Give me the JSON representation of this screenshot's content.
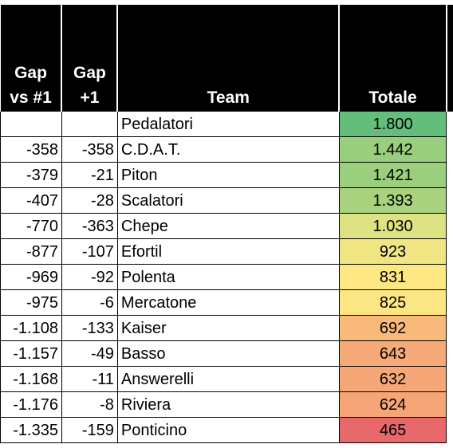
{
  "headers": {
    "gap_first": "Gap\nvs #1",
    "gap_prev": "Gap\n+1",
    "team": "Team",
    "total": "Totale"
  },
  "rows": [
    {
      "gap_first": "",
      "gap_prev": "",
      "team": "Pedalatori",
      "total": "1.800",
      "color": "#63be7b"
    },
    {
      "gap_first": "-358",
      "gap_prev": "-358",
      "team": "C.D.A.T.",
      "total": "1.442",
      "color": "#99ce7e"
    },
    {
      "gap_first": "-379",
      "gap_prev": "-21",
      "team": "Piton",
      "total": "1.421",
      "color": "#9bcf7e"
    },
    {
      "gap_first": "-407",
      "gap_prev": "-28",
      "team": "Scalatori",
      "total": "1.393",
      "color": "#a9d27f"
    },
    {
      "gap_first": "-770",
      "gap_prev": "-363",
      "team": "Chepe",
      "total": "1.030",
      "color": "#dde283"
    },
    {
      "gap_first": "-877",
      "gap_prev": "-107",
      "team": "Efortil",
      "total": "923",
      "color": "#efe683"
    },
    {
      "gap_first": "-969",
      "gap_prev": "-92",
      "team": "Polenta",
      "total": "831",
      "color": "#fde883"
    },
    {
      "gap_first": "-975",
      "gap_prev": "-6",
      "team": "Mercatone",
      "total": "825",
      "color": "#fce583"
    },
    {
      "gap_first": "-1.108",
      "gap_prev": "-133",
      "team": "Kaiser",
      "total": "692",
      "color": "#f8b97a"
    },
    {
      "gap_first": "-1.157",
      "gap_prev": "-49",
      "team": "Basso",
      "total": "643",
      "color": "#f6aa77"
    },
    {
      "gap_first": "-1.168",
      "gap_prev": "-11",
      "team": "Answerelli",
      "total": "632",
      "color": "#f5a777"
    },
    {
      "gap_first": "-1.176",
      "gap_prev": "-8",
      "team": "Riviera",
      "total": "624",
      "color": "#f5a577"
    },
    {
      "gap_first": "-1.335",
      "gap_prev": "-159",
      "team": "Ponticino",
      "total": "465",
      "color": "#e8696b"
    }
  ]
}
